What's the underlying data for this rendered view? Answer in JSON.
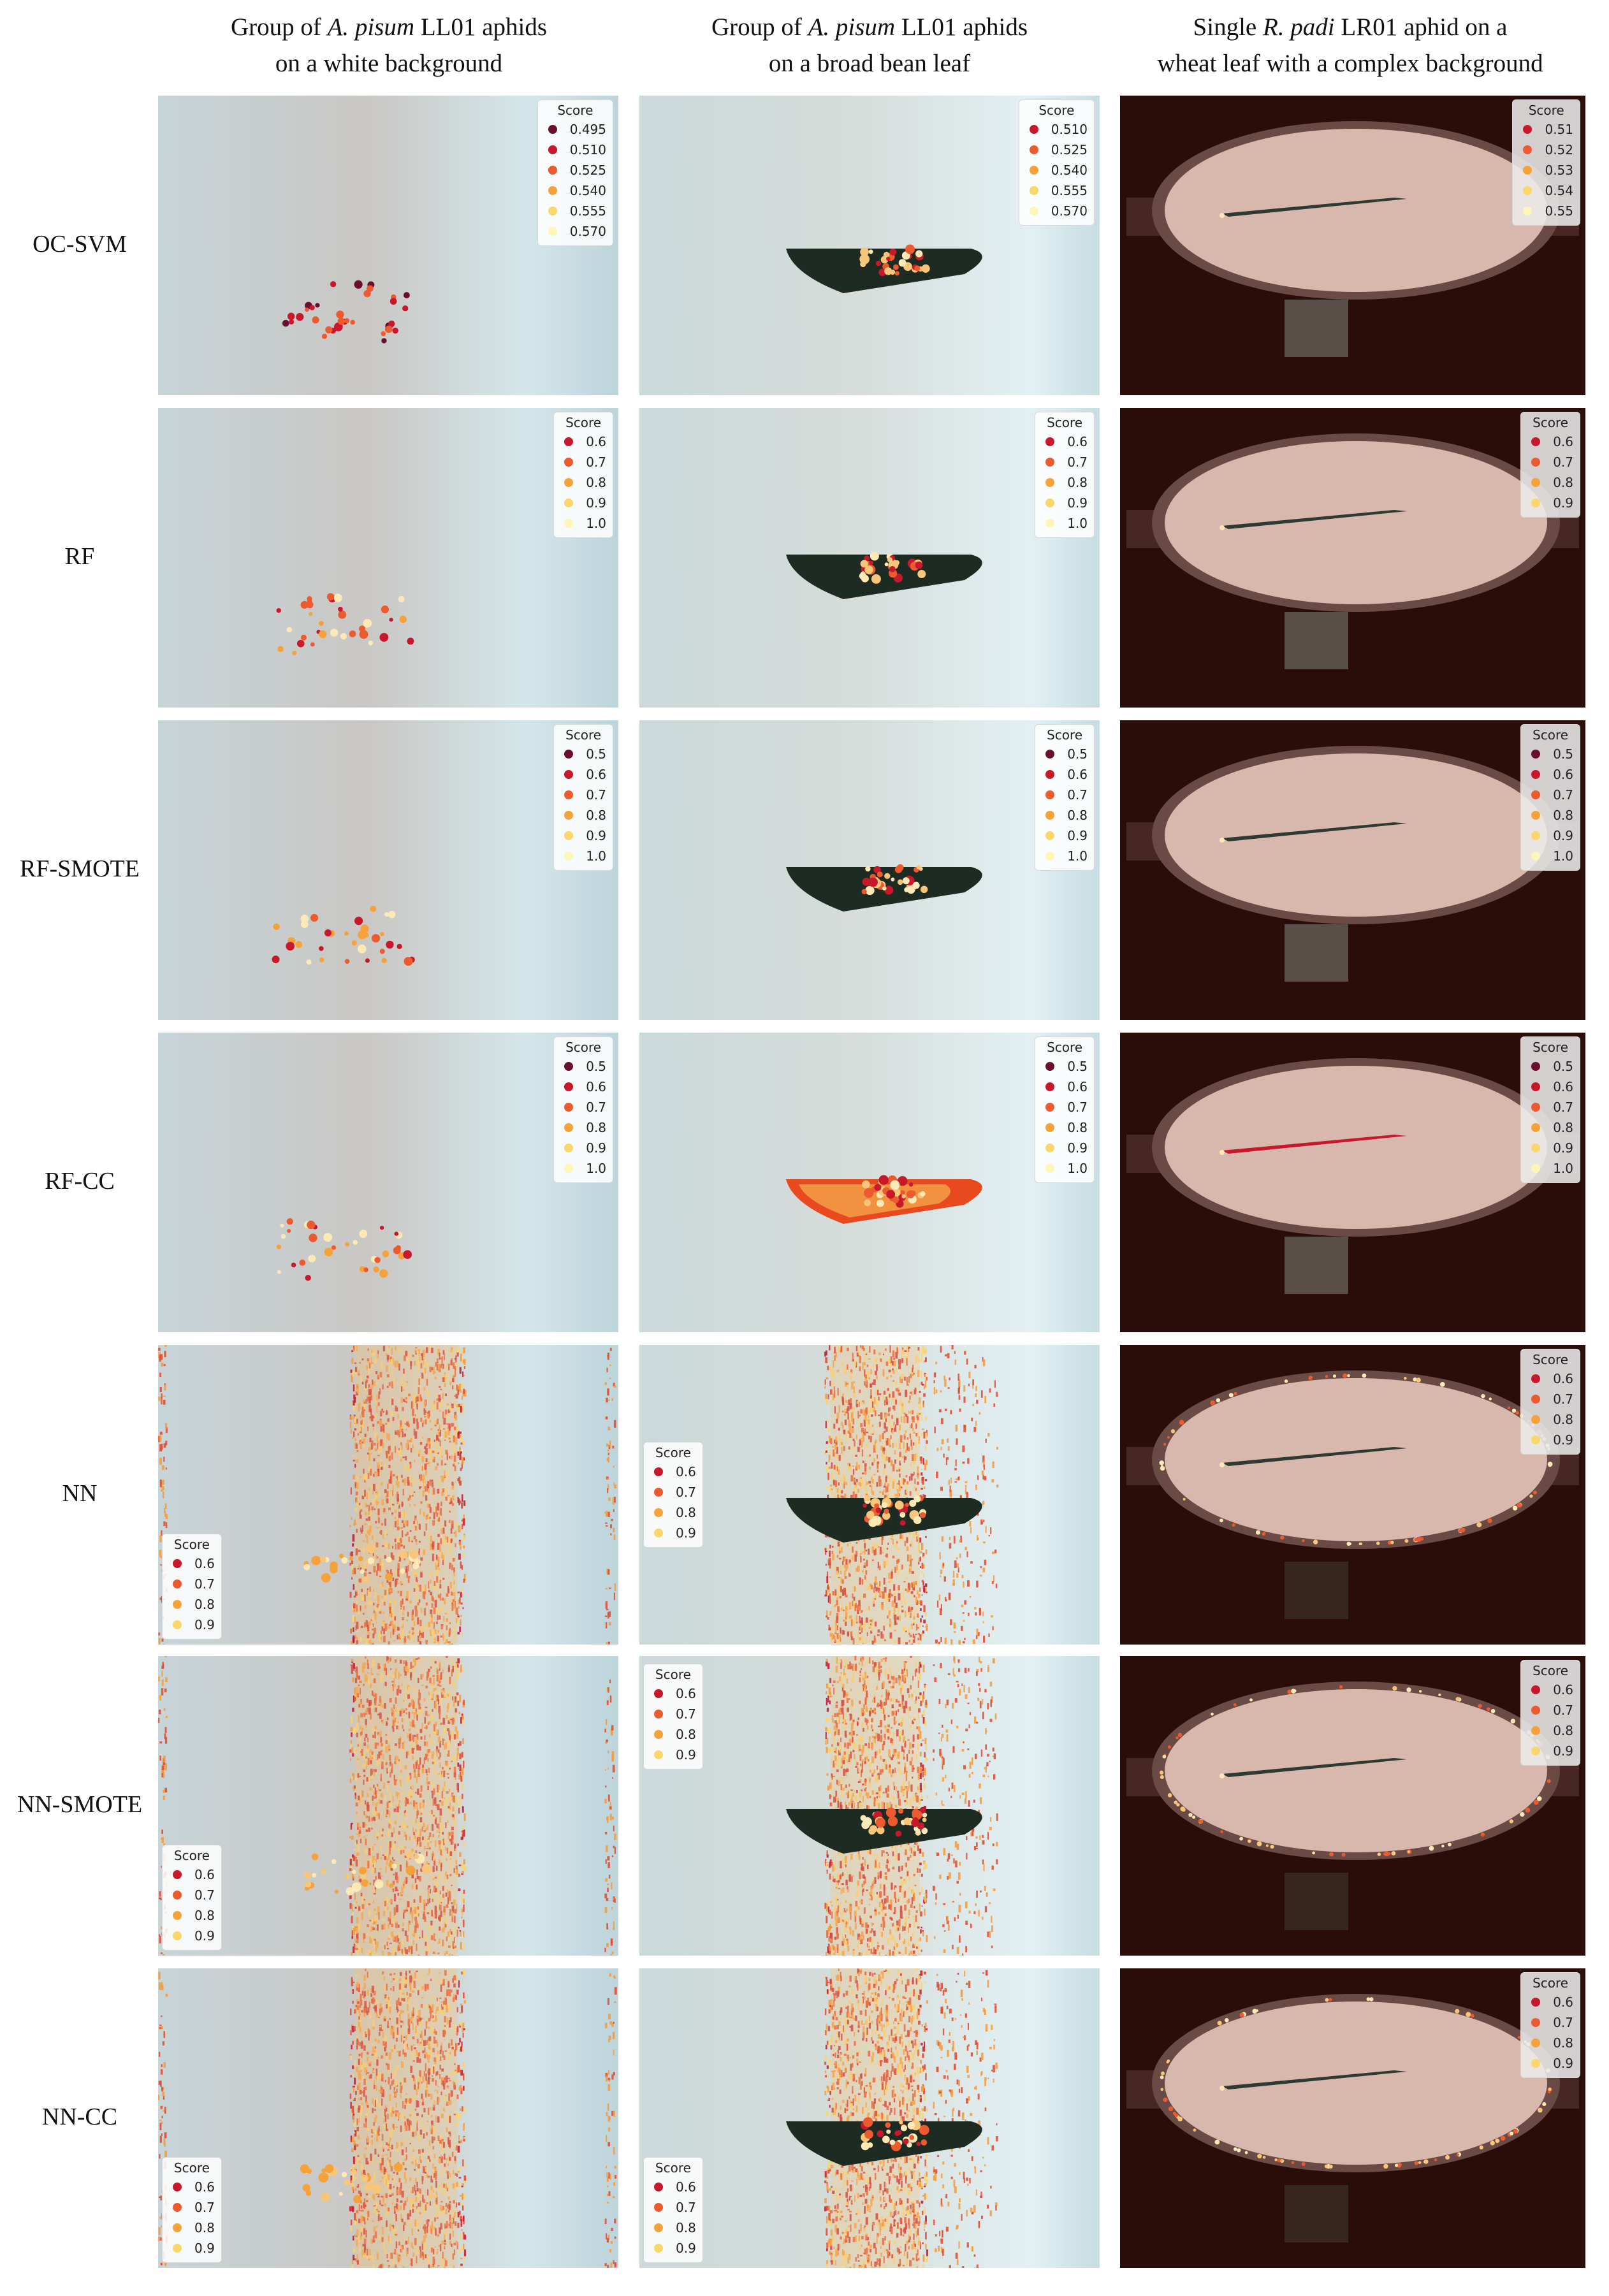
{
  "columns": [
    {
      "line1_pre": "Group of ",
      "line1_italic": "A. pisum",
      "line1_post": " LL01 aphids",
      "line2": "on a white background"
    },
    {
      "line1_pre": "Group of ",
      "line1_italic": "A. pisum",
      "line1_post": " LL01 aphids",
      "line2": "on a broad bean leaf"
    },
    {
      "line1_pre": "Single ",
      "line1_italic": "R. padi",
      "line1_post": " LR01 aphid on a",
      "line2": "wheat leaf with a complex background"
    }
  ],
  "legend_title": "Score",
  "colors": {
    "score_palette": [
      "#6b0f2f",
      "#c8182b",
      "#ec5a2f",
      "#f6a23a",
      "#fad66c",
      "#fdf6b6"
    ],
    "white_bg": "#cfdde0",
    "leaf": "#1d2b22",
    "dark_bg": "#2a0c08",
    "dish": "#d8b8ad"
  },
  "rows": [
    {
      "label": "OC-SVM",
      "legends": [
        [
          "0.495",
          "0.510",
          "0.525",
          "0.540",
          "0.555",
          "0.570"
        ],
        [
          "0.510",
          "0.525",
          "0.540",
          "0.555",
          "0.570"
        ],
        [
          "0.51",
          "0.52",
          "0.53",
          "0.54",
          "0.55"
        ]
      ]
    },
    {
      "label": "RF",
      "legends": [
        [
          "0.6",
          "0.7",
          "0.8",
          "0.9",
          "1.0"
        ],
        [
          "0.6",
          "0.7",
          "0.8",
          "0.9",
          "1.0"
        ],
        [
          "0.6",
          "0.7",
          "0.8",
          "0.9"
        ]
      ]
    },
    {
      "label": "RF-SMOTE",
      "legends": [
        [
          "0.5",
          "0.6",
          "0.7",
          "0.8",
          "0.9",
          "1.0"
        ],
        [
          "0.5",
          "0.6",
          "0.7",
          "0.8",
          "0.9",
          "1.0"
        ],
        [
          "0.5",
          "0.6",
          "0.7",
          "0.8",
          "0.9",
          "1.0"
        ]
      ]
    },
    {
      "label": "RF-CC",
      "legends": [
        [
          "0.5",
          "0.6",
          "0.7",
          "0.8",
          "0.9",
          "1.0"
        ],
        [
          "0.5",
          "0.6",
          "0.7",
          "0.8",
          "0.9",
          "1.0"
        ],
        [
          "0.5",
          "0.6",
          "0.7",
          "0.8",
          "0.9",
          "1.0"
        ]
      ]
    },
    {
      "label": "NN",
      "legends": [
        [
          "0.6",
          "0.7",
          "0.8",
          "0.9"
        ],
        [
          "0.6",
          "0.7",
          "0.8",
          "0.9"
        ],
        [
          "0.6",
          "0.7",
          "0.8",
          "0.9"
        ]
      ]
    },
    {
      "label": "NN-SMOTE",
      "legends": [
        [
          "0.6",
          "0.7",
          "0.8",
          "0.9"
        ],
        [
          "0.6",
          "0.7",
          "0.8",
          "0.9"
        ],
        [
          "0.6",
          "0.7",
          "0.8",
          "0.9"
        ]
      ]
    },
    {
      "label": "NN-CC",
      "legends": [
        [
          "0.6",
          "0.7",
          "0.8",
          "0.9"
        ],
        [
          "0.6",
          "0.7",
          "0.8",
          "0.9"
        ],
        [
          "0.6",
          "0.7",
          "0.8",
          "0.9"
        ]
      ]
    }
  ]
}
